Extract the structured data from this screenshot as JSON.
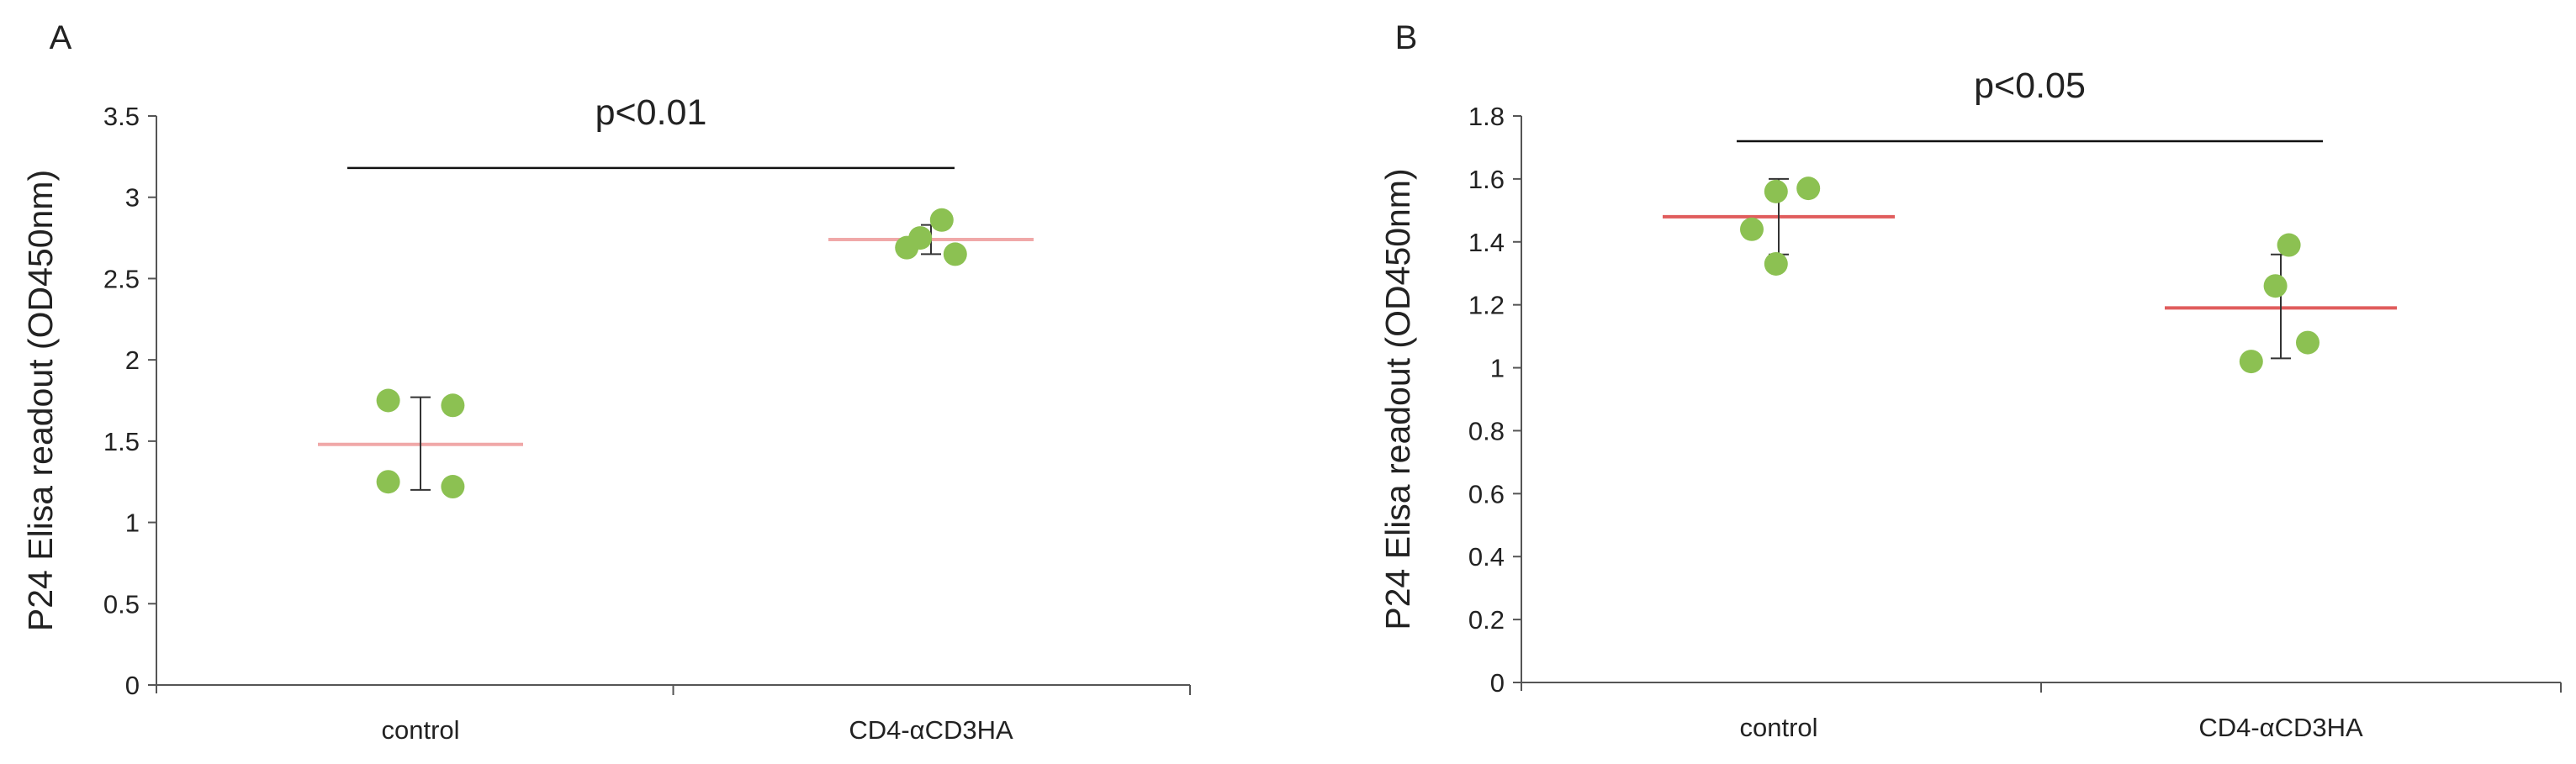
{
  "colors": {
    "point": "#8CC152",
    "mean_a": "#F0A8A8",
    "mean_b": "#E05C5C",
    "axis": "#555555",
    "text": "#222222"
  },
  "chart_data": [
    {
      "type": "scatter",
      "panel_label": "A",
      "title": "",
      "xlabel": "",
      "ylabel": "P24 Elisa readout (OD450nm)",
      "categories": [
        "control",
        "CD4-αCD3HA"
      ],
      "ylim": [
        0,
        3.5
      ],
      "yticks": [
        0,
        0.5,
        1,
        1.5,
        2,
        2.5,
        3,
        3.5
      ],
      "ytick_labels": [
        "0",
        "0.5",
        "1",
        "1.5",
        "2",
        "2.5",
        "3",
        "3.5"
      ],
      "series": [
        {
          "name": "control",
          "category": "control",
          "points": [
            {
              "jitter": -0.6,
              "y": 1.75
            },
            {
              "jitter": -0.6,
              "y": 1.25
            },
            {
              "jitter": 0.6,
              "y": 1.72
            },
            {
              "jitter": 0.6,
              "y": 1.22
            }
          ],
          "mean": 1.48,
          "error_low": 1.2,
          "error_high": 1.77
        },
        {
          "name": "CD4-αCD3HA",
          "category": "CD4-αCD3HA",
          "points": [
            {
              "jitter": -0.45,
              "y": 2.69
            },
            {
              "jitter": -0.2,
              "y": 2.75
            },
            {
              "jitter": 0.2,
              "y": 2.86
            },
            {
              "jitter": 0.45,
              "y": 2.65
            }
          ],
          "mean": 2.74,
          "error_low": 2.65,
          "error_high": 2.83
        }
      ],
      "significance": {
        "text": "p<0.01",
        "y": 3.18
      }
    },
    {
      "type": "scatter",
      "panel_label": "B",
      "title": "",
      "xlabel": "",
      "ylabel": "P24 Elisa readout (OD450nm)",
      "categories": [
        "control",
        "CD4-αCD3HA"
      ],
      "ylim": [
        0,
        1.8
      ],
      "yticks": [
        0,
        0.2,
        0.4,
        0.6,
        0.8,
        1,
        1.2,
        1.4,
        1.6,
        1.8
      ],
      "ytick_labels": [
        "0",
        "0.2",
        "0.4",
        "0.6",
        "0.8",
        "1",
        "1.2",
        "1.4",
        "1.6",
        "1.8"
      ],
      "series": [
        {
          "name": "control",
          "category": "control",
          "points": [
            {
              "jitter": -0.5,
              "y": 1.44
            },
            {
              "jitter": -0.05,
              "y": 1.33
            },
            {
              "jitter": -0.05,
              "y": 1.56
            },
            {
              "jitter": 0.55,
              "y": 1.57
            }
          ],
          "mean": 1.48,
          "error_low": 1.36,
          "error_high": 1.6
        },
        {
          "name": "CD4-αCD3HA",
          "category": "CD4-αCD3HA",
          "points": [
            {
              "jitter": -0.55,
              "y": 1.02
            },
            {
              "jitter": -0.1,
              "y": 1.26
            },
            {
              "jitter": 0.15,
              "y": 1.39
            },
            {
              "jitter": 0.5,
              "y": 1.08
            }
          ],
          "mean": 1.19,
          "error_low": 1.03,
          "error_high": 1.36
        }
      ],
      "significance": {
        "text": "p<0.05",
        "y": 1.72
      }
    }
  ]
}
